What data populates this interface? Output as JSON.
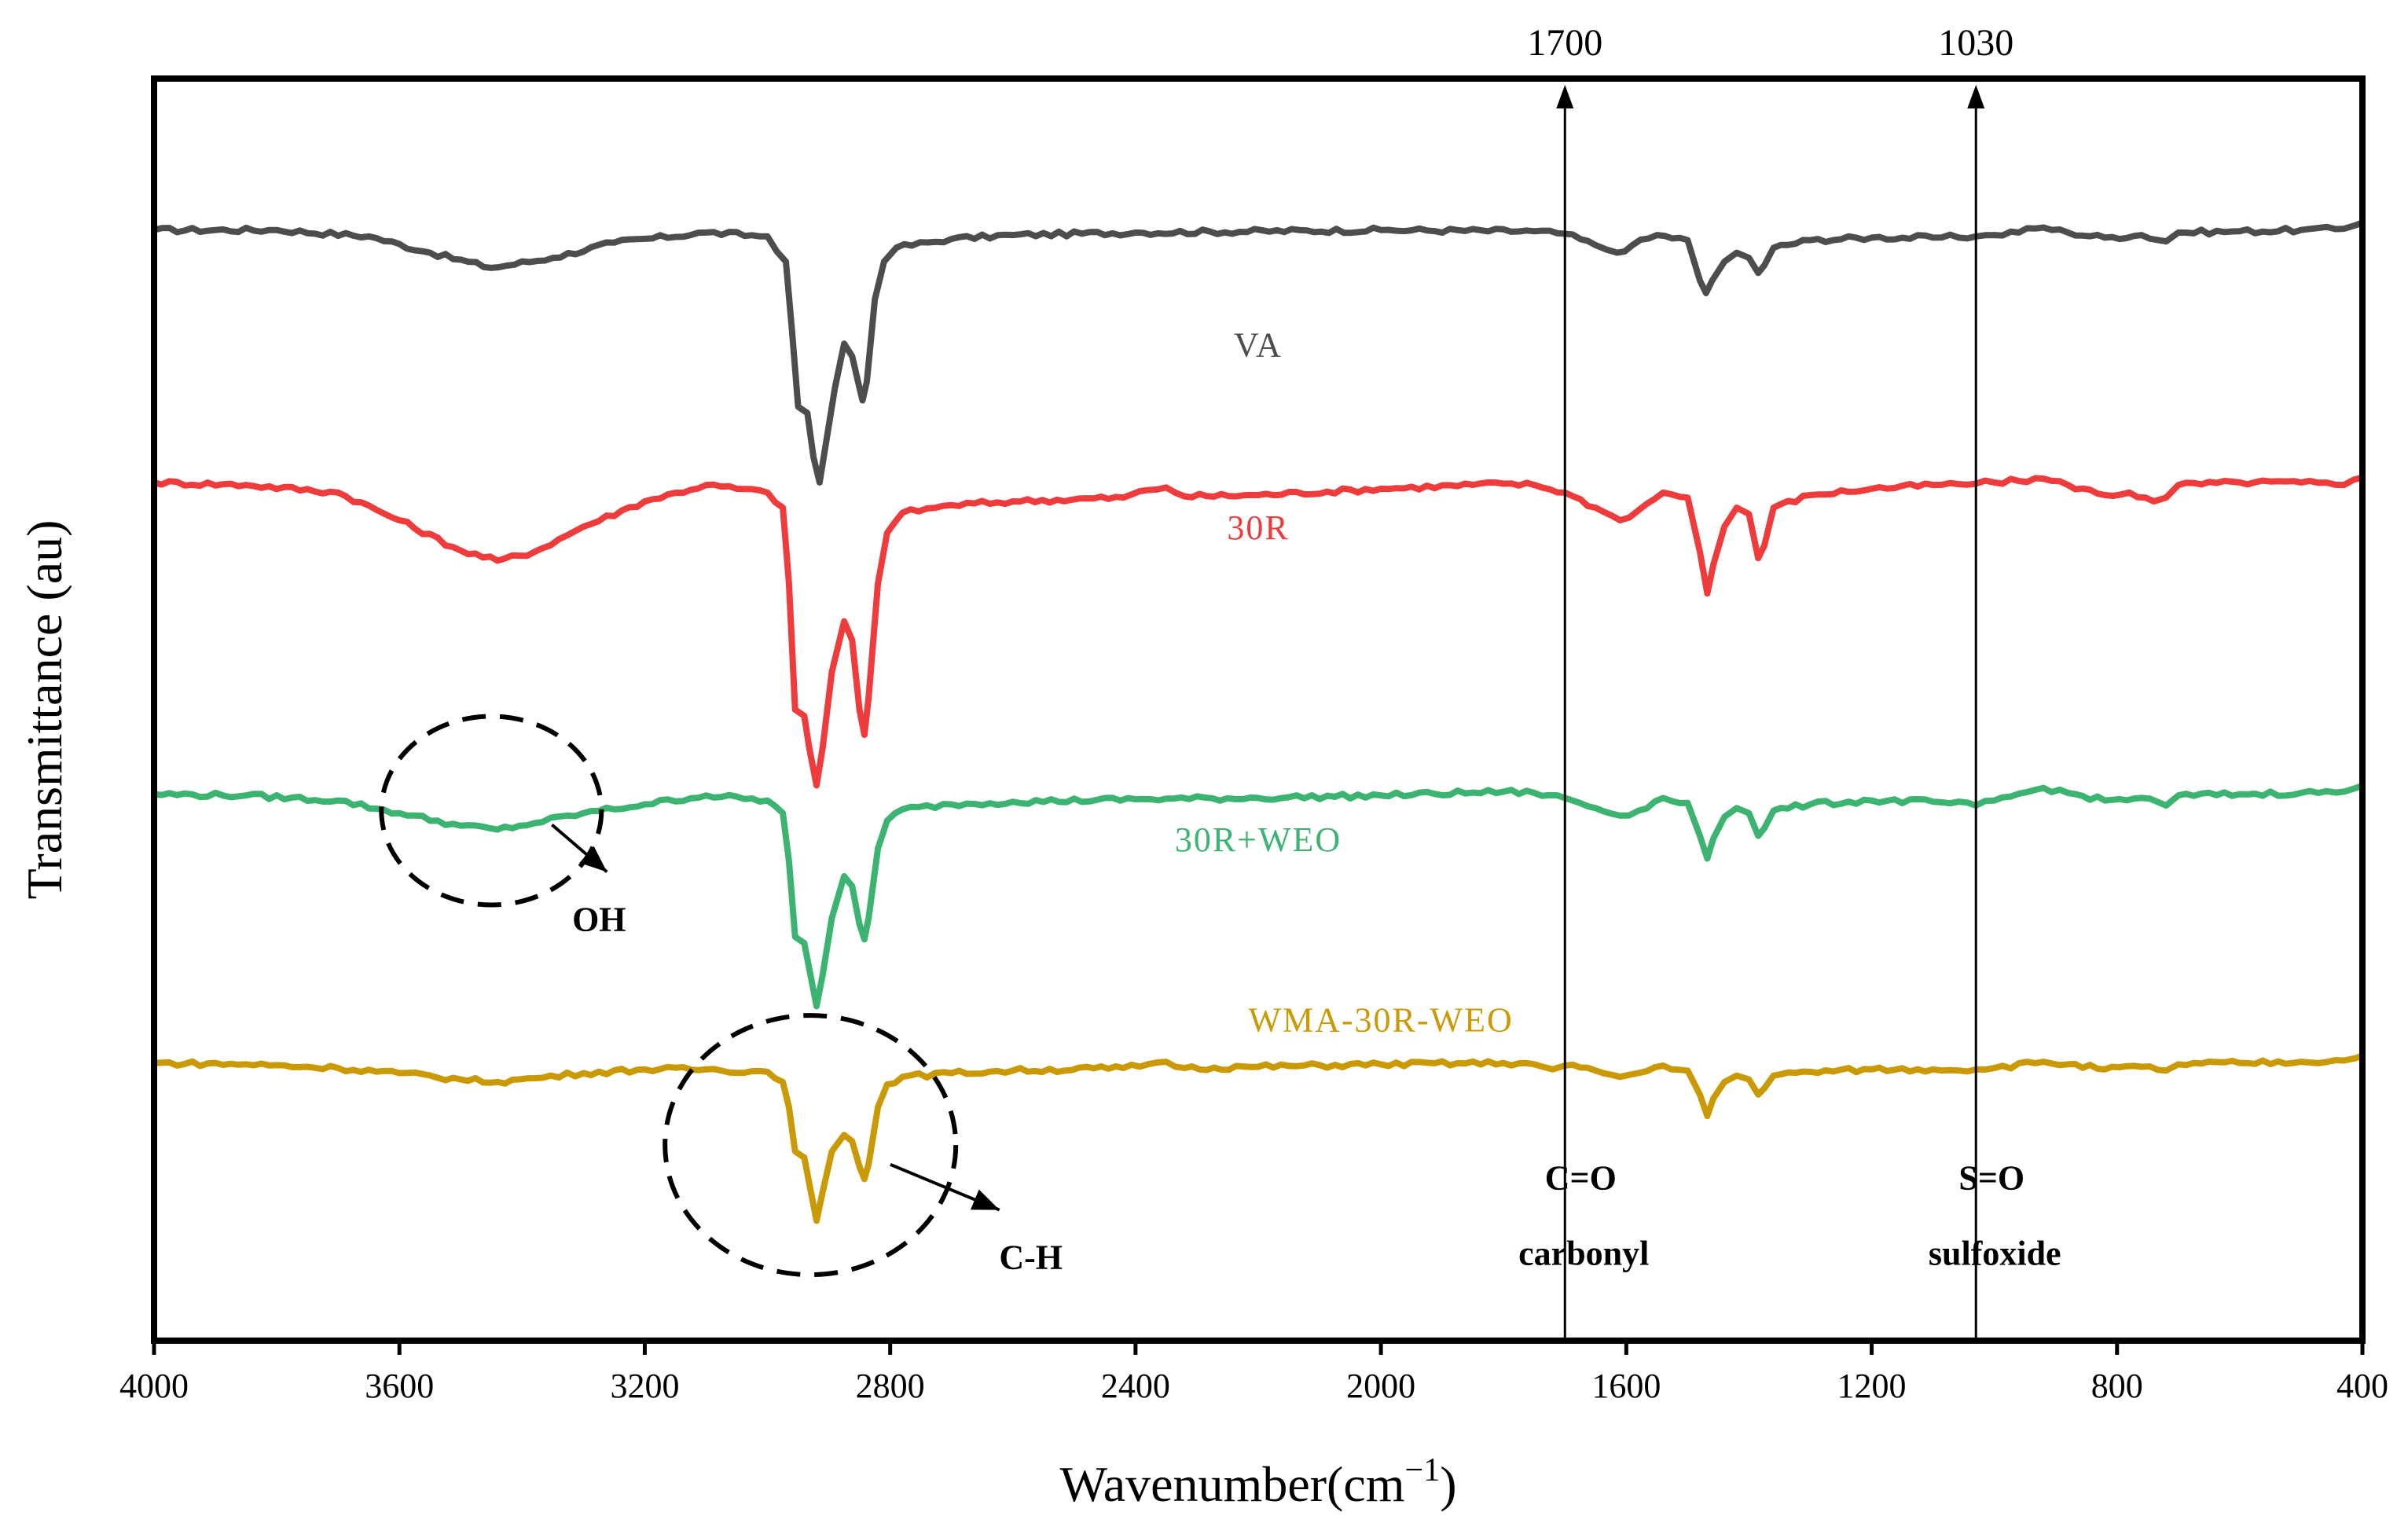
{
  "chart_data": {
    "type": "line",
    "title": "",
    "xlabel": "Wavenumber(cm",
    "xlabel_superscript": "−1",
    "xlabel_suffix": ")",
    "ylabel": "Transmittance (au)",
    "xlim": [
      4000,
      400
    ],
    "x_ticks": [
      4000,
      3600,
      3200,
      2800,
      2400,
      2000,
      1600,
      1200,
      800,
      400
    ],
    "x_tick_labels": [
      "4000",
      "3600",
      "3200",
      "2800",
      "2400",
      "2000",
      "1600",
      "1200",
      "800",
      "400"
    ],
    "ylim": [
      0,
      1
    ],
    "grid": false,
    "series": [
      {
        "name": "VA",
        "color": "#4d4d4d",
        "label_x": 2200,
        "label_offset": 0.09,
        "baseline": 0.88,
        "points": [
          [
            4000,
            0.88
          ],
          [
            3800,
            0.88
          ],
          [
            3650,
            0.875
          ],
          [
            3550,
            0.862
          ],
          [
            3450,
            0.85
          ],
          [
            3350,
            0.858
          ],
          [
            3250,
            0.87
          ],
          [
            3100,
            0.878
          ],
          [
            3000,
            0.875
          ],
          [
            2970,
            0.855
          ],
          [
            2960,
            0.8
          ],
          [
            2950,
            0.74
          ],
          [
            2935,
            0.735
          ],
          [
            2925,
            0.7
          ],
          [
            2915,
            0.68
          ],
          [
            2905,
            0.71
          ],
          [
            2890,
            0.755
          ],
          [
            2875,
            0.79
          ],
          [
            2862,
            0.78
          ],
          [
            2850,
            0.755
          ],
          [
            2845,
            0.745
          ],
          [
            2838,
            0.76
          ],
          [
            2825,
            0.825
          ],
          [
            2810,
            0.855
          ],
          [
            2790,
            0.866
          ],
          [
            2700,
            0.873
          ],
          [
            2600,
            0.876
          ],
          [
            2400,
            0.878
          ],
          [
            2000,
            0.88
          ],
          [
            1750,
            0.879
          ],
          [
            1700,
            0.877
          ],
          [
            1650,
            0.868
          ],
          [
            1615,
            0.862
          ],
          [
            1590,
            0.868
          ],
          [
            1550,
            0.876
          ],
          [
            1500,
            0.872
          ],
          [
            1480,
            0.84
          ],
          [
            1470,
            0.83
          ],
          [
            1460,
            0.84
          ],
          [
            1440,
            0.855
          ],
          [
            1420,
            0.862
          ],
          [
            1400,
            0.858
          ],
          [
            1385,
            0.846
          ],
          [
            1375,
            0.852
          ],
          [
            1360,
            0.866
          ],
          [
            1300,
            0.872
          ],
          [
            1200,
            0.874
          ],
          [
            1100,
            0.874
          ],
          [
            1030,
            0.875
          ],
          [
            1000,
            0.876
          ],
          [
            920,
            0.882
          ],
          [
            880,
            0.878
          ],
          [
            820,
            0.874
          ],
          [
            760,
            0.876
          ],
          [
            720,
            0.871
          ],
          [
            700,
            0.878
          ],
          [
            600,
            0.879
          ],
          [
            500,
            0.88
          ],
          [
            430,
            0.881
          ],
          [
            410,
            0.884
          ],
          [
            400,
            0.886
          ]
        ]
      },
      {
        "name": "30R",
        "color": "#ee3b3b",
        "label_x": 2200,
        "label_offset": 0.035,
        "baseline": 0.68,
        "points": [
          [
            4000,
            0.68
          ],
          [
            3850,
            0.678
          ],
          [
            3700,
            0.672
          ],
          [
            3600,
            0.65
          ],
          [
            3500,
            0.626
          ],
          [
            3440,
            0.618
          ],
          [
            3380,
            0.625
          ],
          [
            3300,
            0.645
          ],
          [
            3200,
            0.665
          ],
          [
            3100,
            0.678
          ],
          [
            3000,
            0.672
          ],
          [
            2975,
            0.66
          ],
          [
            2965,
            0.6
          ],
          [
            2955,
            0.5
          ],
          [
            2940,
            0.495
          ],
          [
            2932,
            0.47
          ],
          [
            2920,
            0.44
          ],
          [
            2910,
            0.47
          ],
          [
            2895,
            0.53
          ],
          [
            2875,
            0.57
          ],
          [
            2862,
            0.555
          ],
          [
            2850,
            0.5
          ],
          [
            2842,
            0.48
          ],
          [
            2835,
            0.51
          ],
          [
            2820,
            0.6
          ],
          [
            2805,
            0.64
          ],
          [
            2780,
            0.656
          ],
          [
            2700,
            0.662
          ],
          [
            2600,
            0.665
          ],
          [
            2420,
            0.668
          ],
          [
            2380,
            0.674
          ],
          [
            2350,
            0.676
          ],
          [
            2320,
            0.669
          ],
          [
            2200,
            0.67
          ],
          [
            2000,
            0.675
          ],
          [
            1800,
            0.679
          ],
          [
            1750,
            0.678
          ],
          [
            1700,
            0.672
          ],
          [
            1650,
            0.66
          ],
          [
            1610,
            0.65
          ],
          [
            1580,
            0.658
          ],
          [
            1540,
            0.672
          ],
          [
            1500,
            0.668
          ],
          [
            1480,
            0.625
          ],
          [
            1468,
            0.592
          ],
          [
            1458,
            0.615
          ],
          [
            1440,
            0.645
          ],
          [
            1420,
            0.66
          ],
          [
            1400,
            0.655
          ],
          [
            1385,
            0.62
          ],
          [
            1375,
            0.63
          ],
          [
            1360,
            0.66
          ],
          [
            1300,
            0.67
          ],
          [
            1200,
            0.675
          ],
          [
            1100,
            0.678
          ],
          [
            1030,
            0.679
          ],
          [
            1000,
            0.68
          ],
          [
            920,
            0.683
          ],
          [
            880,
            0.678
          ],
          [
            820,
            0.67
          ],
          [
            780,
            0.672
          ],
          [
            740,
            0.665
          ],
          [
            720,
            0.668
          ],
          [
            700,
            0.678
          ],
          [
            600,
            0.68
          ],
          [
            500,
            0.68
          ],
          [
            430,
            0.678
          ],
          [
            415,
            0.682
          ],
          [
            400,
            0.684
          ]
        ]
      },
      {
        "name": "30R+WEO",
        "color": "#3cb371",
        "label_x": 2200,
        "label_offset": 0.035,
        "baseline": 0.433,
        "points": [
          [
            4000,
            0.433
          ],
          [
            3850,
            0.432
          ],
          [
            3700,
            0.428
          ],
          [
            3600,
            0.418
          ],
          [
            3500,
            0.408
          ],
          [
            3440,
            0.405
          ],
          [
            3380,
            0.41
          ],
          [
            3300,
            0.418
          ],
          [
            3200,
            0.425
          ],
          [
            3100,
            0.432
          ],
          [
            3000,
            0.428
          ],
          [
            2975,
            0.418
          ],
          [
            2965,
            0.38
          ],
          [
            2955,
            0.32
          ],
          [
            2940,
            0.315
          ],
          [
            2932,
            0.295
          ],
          [
            2920,
            0.265
          ],
          [
            2910,
            0.29
          ],
          [
            2895,
            0.335
          ],
          [
            2875,
            0.368
          ],
          [
            2862,
            0.36
          ],
          [
            2850,
            0.33
          ],
          [
            2842,
            0.318
          ],
          [
            2835,
            0.335
          ],
          [
            2820,
            0.39
          ],
          [
            2805,
            0.412
          ],
          [
            2780,
            0.421
          ],
          [
            2700,
            0.425
          ],
          [
            2600,
            0.427
          ],
          [
            2400,
            0.429
          ],
          [
            2200,
            0.43
          ],
          [
            2000,
            0.432
          ],
          [
            1800,
            0.435
          ],
          [
            1750,
            0.434
          ],
          [
            1700,
            0.43
          ],
          [
            1650,
            0.422
          ],
          [
            1610,
            0.416
          ],
          [
            1580,
            0.42
          ],
          [
            1540,
            0.43
          ],
          [
            1500,
            0.426
          ],
          [
            1480,
            0.4
          ],
          [
            1468,
            0.382
          ],
          [
            1458,
            0.398
          ],
          [
            1440,
            0.415
          ],
          [
            1420,
            0.422
          ],
          [
            1400,
            0.418
          ],
          [
            1385,
            0.4
          ],
          [
            1375,
            0.406
          ],
          [
            1360,
            0.42
          ],
          [
            1300,
            0.425
          ],
          [
            1200,
            0.428
          ],
          [
            1100,
            0.427
          ],
          [
            1030,
            0.424
          ],
          [
            1000,
            0.428
          ],
          [
            920,
            0.438
          ],
          [
            880,
            0.434
          ],
          [
            820,
            0.428
          ],
          [
            760,
            0.43
          ],
          [
            720,
            0.424
          ],
          [
            700,
            0.432
          ],
          [
            600,
            0.433
          ],
          [
            500,
            0.434
          ],
          [
            430,
            0.435
          ],
          [
            410,
            0.438
          ],
          [
            400,
            0.44
          ]
        ]
      },
      {
        "name": "WMA-30R-WEO",
        "color": "#c99a06",
        "label_x": 2000,
        "label_offset": -0.035,
        "baseline": 0.22,
        "points": [
          [
            4000,
            0.22
          ],
          [
            3850,
            0.219
          ],
          [
            3700,
            0.216
          ],
          [
            3600,
            0.212
          ],
          [
            3500,
            0.207
          ],
          [
            3440,
            0.205
          ],
          [
            3380,
            0.208
          ],
          [
            3300,
            0.212
          ],
          [
            3200,
            0.215
          ],
          [
            3100,
            0.215
          ],
          [
            3000,
            0.213
          ],
          [
            2975,
            0.205
          ],
          [
            2965,
            0.185
          ],
          [
            2955,
            0.15
          ],
          [
            2940,
            0.145
          ],
          [
            2932,
            0.125
          ],
          [
            2920,
            0.095
          ],
          [
            2910,
            0.118
          ],
          [
            2895,
            0.15
          ],
          [
            2875,
            0.163
          ],
          [
            2862,
            0.158
          ],
          [
            2850,
            0.138
          ],
          [
            2842,
            0.128
          ],
          [
            2835,
            0.14
          ],
          [
            2820,
            0.185
          ],
          [
            2805,
            0.203
          ],
          [
            2780,
            0.209
          ],
          [
            2700,
            0.212
          ],
          [
            2600,
            0.214
          ],
          [
            2420,
            0.216
          ],
          [
            2380,
            0.219
          ],
          [
            2350,
            0.221
          ],
          [
            2320,
            0.216
          ],
          [
            2200,
            0.217
          ],
          [
            2000,
            0.219
          ],
          [
            1800,
            0.22
          ],
          [
            1750,
            0.219
          ],
          [
            1720,
            0.215
          ],
          [
            1700,
            0.218
          ],
          [
            1650,
            0.214
          ],
          [
            1610,
            0.209
          ],
          [
            1580,
            0.212
          ],
          [
            1540,
            0.218
          ],
          [
            1500,
            0.214
          ],
          [
            1480,
            0.195
          ],
          [
            1468,
            0.178
          ],
          [
            1458,
            0.192
          ],
          [
            1440,
            0.205
          ],
          [
            1420,
            0.21
          ],
          [
            1400,
            0.207
          ],
          [
            1385,
            0.195
          ],
          [
            1375,
            0.2
          ],
          [
            1360,
            0.21
          ],
          [
            1300,
            0.213
          ],
          [
            1200,
            0.215
          ],
          [
            1100,
            0.215
          ],
          [
            1030,
            0.215
          ],
          [
            1000,
            0.216
          ],
          [
            920,
            0.221
          ],
          [
            880,
            0.219
          ],
          [
            820,
            0.215
          ],
          [
            760,
            0.217
          ],
          [
            720,
            0.214
          ],
          [
            700,
            0.219
          ],
          [
            600,
            0.22
          ],
          [
            500,
            0.221
          ],
          [
            430,
            0.222
          ],
          [
            410,
            0.224
          ],
          [
            400,
            0.226
          ]
        ]
      }
    ],
    "markers": [
      {
        "x": 1700,
        "label": "1700",
        "group": "C=O",
        "name": "carbonyl"
      },
      {
        "x": 1030,
        "label": "1030",
        "group": "S=O",
        "name": "sulfoxide"
      }
    ],
    "annotations": [
      {
        "text": "OH",
        "center_x": 3450,
        "center_y": 0.42
      },
      {
        "text": "C-H",
        "center_x": 2930,
        "center_y": 0.155
      }
    ]
  }
}
